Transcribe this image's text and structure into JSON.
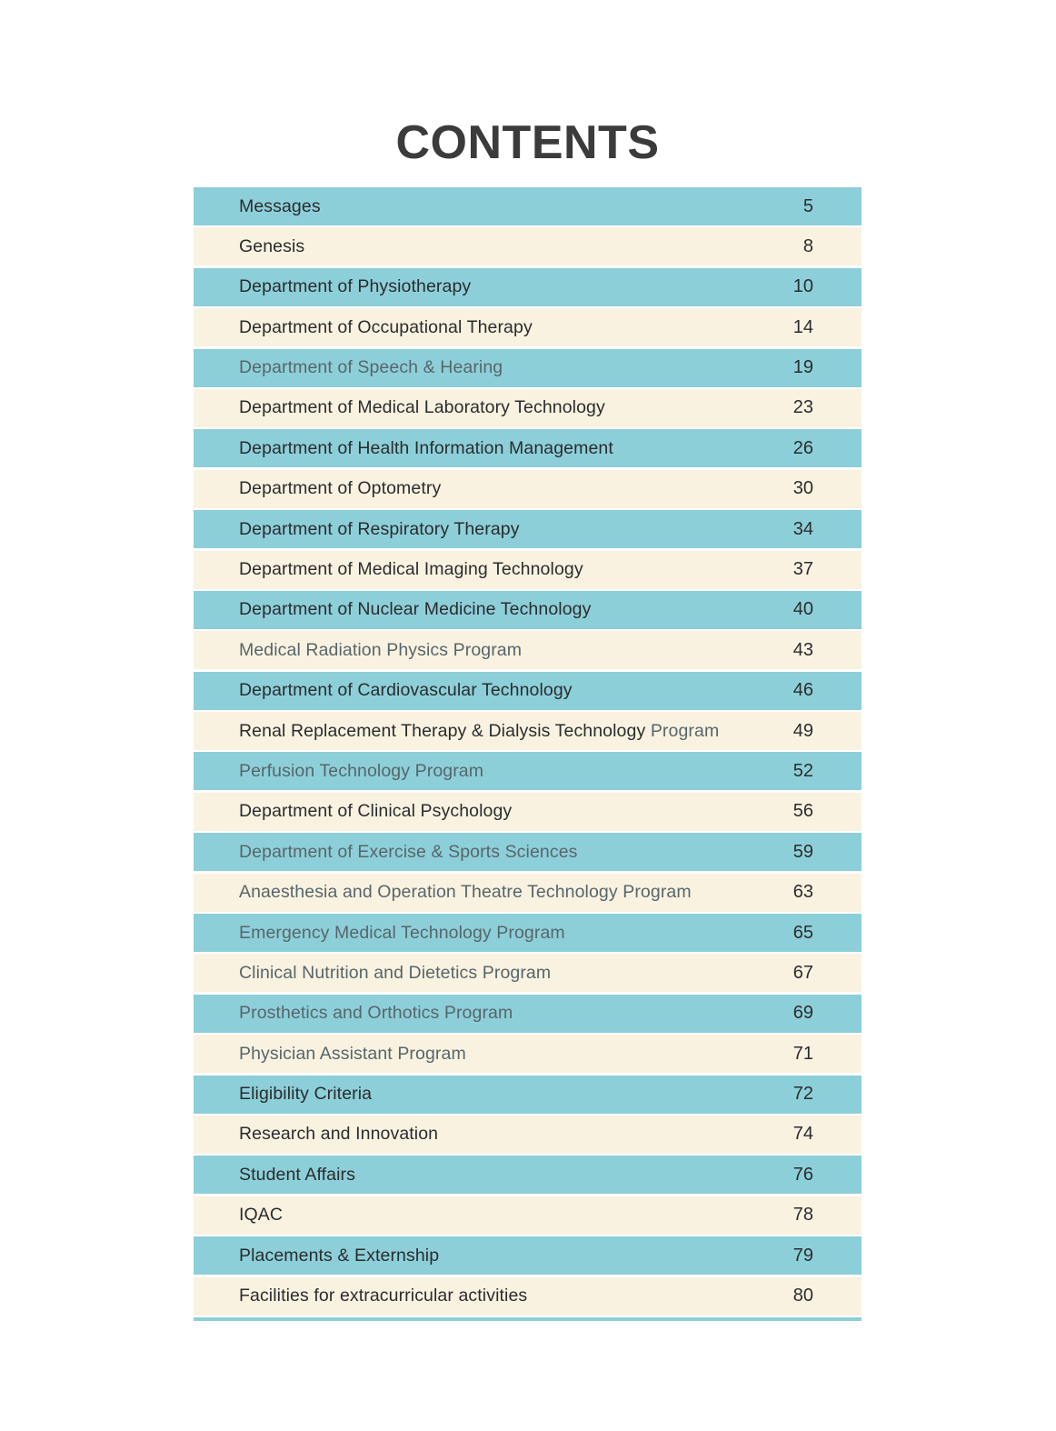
{
  "page": {
    "title": "CONTENTS"
  },
  "colors": {
    "row_teal": "#8DCFD9",
    "row_cream": "#F9F2E0",
    "text_dark": "#2A2C2E",
    "text_muted": "#57666B",
    "title_color": "#3B3B3B",
    "page_background": "#FFFFFF"
  },
  "toc": {
    "rows": [
      {
        "label": "Messages",
        "page": "5",
        "muted": false
      },
      {
        "label": "Genesis",
        "page": "8",
        "muted": false
      },
      {
        "label": "Department of Physiotherapy",
        "page": "10",
        "muted": false
      },
      {
        "label": "Department of Occupational Therapy",
        "page": "14",
        "muted": false
      },
      {
        "label": "Department of Speech & Hearing",
        "page": "19",
        "muted": true
      },
      {
        "label": "Department of Medical Laboratory Technology",
        "page": "23",
        "muted": false
      },
      {
        "label": "Department of Health Information Management",
        "page": "26",
        "muted": false
      },
      {
        "label": "Department of Optometry",
        "page": "30",
        "muted": false
      },
      {
        "label": "Department of Respiratory Therapy",
        "page": "34",
        "muted": false
      },
      {
        "label": "Department of Medical Imaging Technology",
        "page": "37",
        "muted": false
      },
      {
        "label": "Department of Nuclear Medicine Technology",
        "page": "40",
        "muted": false
      },
      {
        "label": "Medical Radiation Physics Program",
        "page": "43",
        "muted": true
      },
      {
        "label": "Department of Cardiovascular Technology",
        "page": "46",
        "muted": false
      },
      {
        "label": "Renal Replacement Therapy & Dialysis Technology",
        "label_suffix": " Program",
        "page": "49",
        "muted": false
      },
      {
        "label": "Perfusion Technology Program",
        "page": "52",
        "muted": true
      },
      {
        "label": "Department of Clinical Psychology",
        "page": "56",
        "muted": false
      },
      {
        "label": "Department of Exercise & Sports Sciences",
        "page": "59",
        "muted": true
      },
      {
        "label": "Anaesthesia and Operation Theatre Technology Program",
        "page": "63",
        "muted": true
      },
      {
        "label": "Emergency Medical Technology Program",
        "page": "65",
        "muted": true
      },
      {
        "label": "Clinical Nutrition and Dietetics Program",
        "page": "67",
        "muted": true
      },
      {
        "label": "Prosthetics and Orthotics Program",
        "page": "69",
        "muted": true
      },
      {
        "label": "Physician Assistant Program",
        "page": "71",
        "muted": true
      },
      {
        "label": "Eligibility Criteria",
        "page": "72",
        "muted": false
      },
      {
        "label": "Research and Innovation",
        "page": "74",
        "muted": false
      },
      {
        "label": "Student Affairs",
        "page": "76",
        "muted": false
      },
      {
        "label": "IQAC",
        "page": "78",
        "muted": false
      },
      {
        "label": "Placements & Externship",
        "page": "79",
        "muted": false
      },
      {
        "label": "Facilities for extracurricular activities",
        "page": "80",
        "muted": false
      }
    ]
  }
}
